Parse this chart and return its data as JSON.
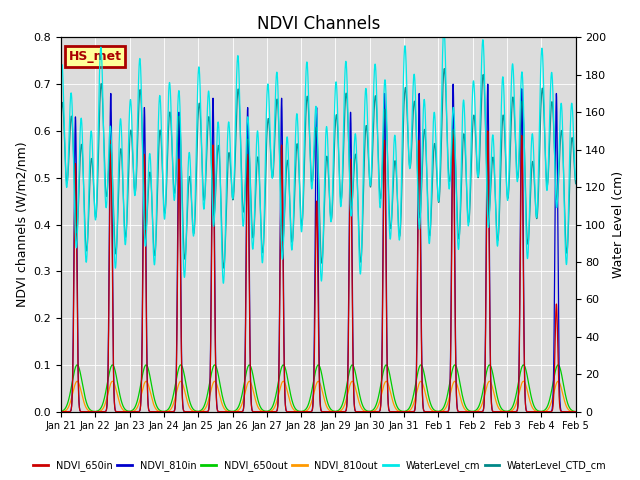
{
  "title": "NDVI Channels",
  "ylabel_left": "NDVI channels (W/m2/nm)",
  "ylabel_right": "Water Level (cm)",
  "ylim_left": [
    0.0,
    0.8
  ],
  "ylim_right": [
    0,
    200
  ],
  "yticks_left": [
    0.0,
    0.1,
    0.2,
    0.3,
    0.4,
    0.5,
    0.6,
    0.7,
    0.8
  ],
  "yticks_right": [
    0,
    20,
    40,
    60,
    80,
    100,
    120,
    140,
    160,
    180,
    200
  ],
  "bg_color": "#dcdcdc",
  "annotation_text": "HS_met",
  "annotation_color": "#aa0000",
  "annotation_bg": "#ffff99",
  "series_colors": {
    "NDVI_650in": "#cc0000",
    "NDVI_810in": "#0000cc",
    "NDVI_650out": "#00cc00",
    "NDVI_810out": "#ff9900",
    "WaterLevel_cm": "#00e8e8",
    "WaterLevel_CTD_cm": "#008888"
  },
  "xtick_labels": [
    "Jan 21",
    "Jan 22",
    "Jan 23",
    "Jan 24",
    "Jan 25",
    "Jan 26",
    "Jan 27",
    "Jan 28",
    "Jan 29",
    "Jan 30",
    "Jan 31",
    "Feb 1",
    "Feb 2",
    "Feb 3",
    "Feb 4",
    "Feb 5"
  ]
}
